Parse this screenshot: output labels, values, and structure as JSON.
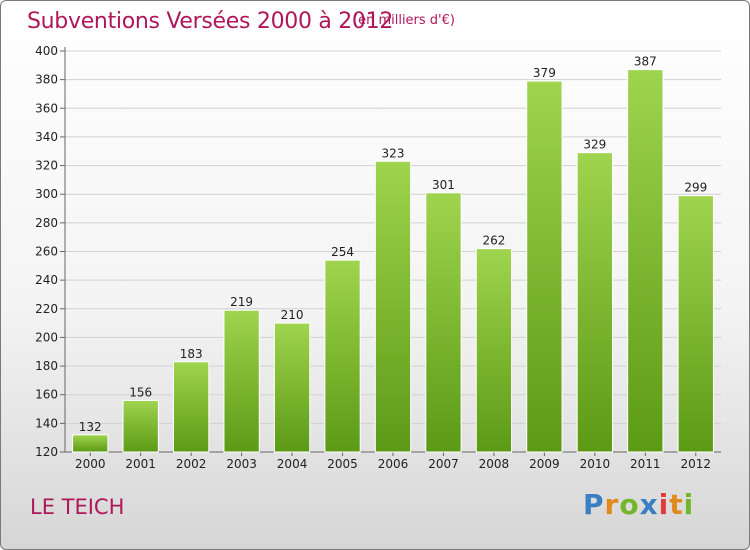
{
  "chart_data": {
    "type": "bar",
    "title": "Subventions Versées 2000 à 2012",
    "subtitle": "(en milliers d'€)",
    "categories": [
      "2000",
      "2001",
      "2002",
      "2003",
      "2004",
      "2005",
      "2006",
      "2007",
      "2008",
      "2009",
      "2010",
      "2011",
      "2012"
    ],
    "values": [
      132,
      156,
      183,
      219,
      210,
      254,
      323,
      301,
      262,
      379,
      329,
      387,
      299
    ],
    "ylim": [
      120,
      400
    ],
    "yticks": [
      120,
      140,
      160,
      180,
      200,
      220,
      240,
      260,
      280,
      300,
      320,
      340,
      360,
      380,
      400
    ],
    "grid": true,
    "bar_color": "#7ab52e",
    "bar_color_top": "#9fd44e",
    "bar_color_bottom": "#5c9a16"
  },
  "commune": "LE TEICH",
  "logo": {
    "text": "Proxiti",
    "letters": [
      "P",
      "r",
      "o",
      "x",
      "i",
      "t",
      "i"
    ]
  }
}
